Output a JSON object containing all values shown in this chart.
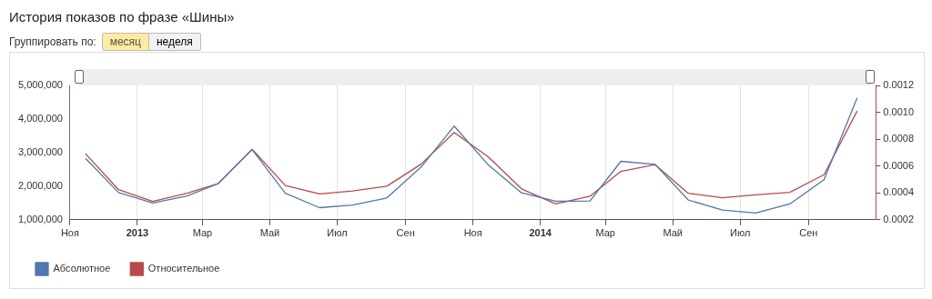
{
  "chart_data": {
    "type": "line",
    "title": "История показов по фразе «Шины»",
    "annotations": [
      "Группировать по:",
      "месяц",
      "неделя"
    ],
    "x": [
      "2012-11-15",
      "2012-12-15",
      "2013-01-15",
      "2013-02-15",
      "2013-03-15",
      "2013-04-15",
      "2013-05-15",
      "2013-06-15",
      "2013-07-15",
      "2013-08-15",
      "2013-09-15",
      "2013-10-15",
      "2013-11-15",
      "2013-12-15",
      "2014-01-15",
      "2014-02-15",
      "2014-03-15",
      "2014-04-15",
      "2014-05-15",
      "2014-06-15",
      "2014-07-15",
      "2014-08-15",
      "2014-09-15",
      "2014-10-15"
    ],
    "series": [
      {
        "name": "Абсолютное",
        "color": "#4f77b0",
        "values": [
          2830000,
          1810000,
          1500000,
          1710000,
          2070000,
          3090000,
          1790000,
          1360000,
          1440000,
          1650000,
          2570000,
          3790000,
          2630000,
          1800000,
          1550000,
          1560000,
          2740000,
          2650000,
          1590000,
          1290000,
          1200000,
          1470000,
          2190000,
          4630000
        ]
      },
      {
        "name": "Относительное",
        "color": "#b94a4a",
        "axis": "y2",
        "values": [
          0.000692,
          0.000424,
          0.000337,
          0.000398,
          0.000468,
          0.000725,
          0.000455,
          0.000392,
          0.000414,
          0.00045,
          0.000614,
          0.00085,
          0.000667,
          0.00043,
          0.000318,
          0.000375,
          0.00056,
          0.00061,
          0.000397,
          0.000363,
          0.000386,
          0.000404,
          0.000535,
          0.00101
        ]
      }
    ],
    "xlim": [
      "2012-11",
      "2014-11"
    ],
    "xticks": [
      {
        "value": "2012-11",
        "label": "Ноя"
      },
      {
        "value": "2013-01",
        "label": "2013"
      },
      {
        "value": "2013-03",
        "label": "Мар"
      },
      {
        "value": "2013-05",
        "label": "Май"
      },
      {
        "value": "2013-07",
        "label": "Июл"
      },
      {
        "value": "2013-09",
        "label": "Сен"
      },
      {
        "value": "2013-11",
        "label": "Ноя"
      },
      {
        "value": "2014-01",
        "label": "2014"
      },
      {
        "value": "2014-03",
        "label": "Мар"
      },
      {
        "value": "2014-05",
        "label": "Май"
      },
      {
        "value": "2014-07",
        "label": "Июл"
      },
      {
        "value": "2014-09",
        "label": "Сен"
      }
    ],
    "ylim": [
      1000000,
      5000000
    ],
    "yticks": [
      {
        "value": 1000000,
        "label": "1,000,000"
      },
      {
        "value": 2000000,
        "label": "2,000,000"
      },
      {
        "value": 3000000,
        "label": "3,000,000"
      },
      {
        "value": 4000000,
        "label": "4,000,000"
      },
      {
        "value": 5000000,
        "label": "5,000,000"
      }
    ],
    "y2lim": [
      0.0002,
      0.0012
    ],
    "y2ticks": [
      {
        "value": 0.0002,
        "label": "0.0002"
      },
      {
        "value": 0.0004,
        "label": "0.0004"
      },
      {
        "value": 0.0006,
        "label": "0.0006"
      },
      {
        "value": 0.0008,
        "label": "0.0008"
      },
      {
        "value": 0.001,
        "label": "0.0010"
      },
      {
        "value": 0.0012,
        "label": "0.0012"
      }
    ],
    "grid": "x",
    "legend": "bottom left",
    "marker": "none",
    "line_style": "solid"
  }
}
